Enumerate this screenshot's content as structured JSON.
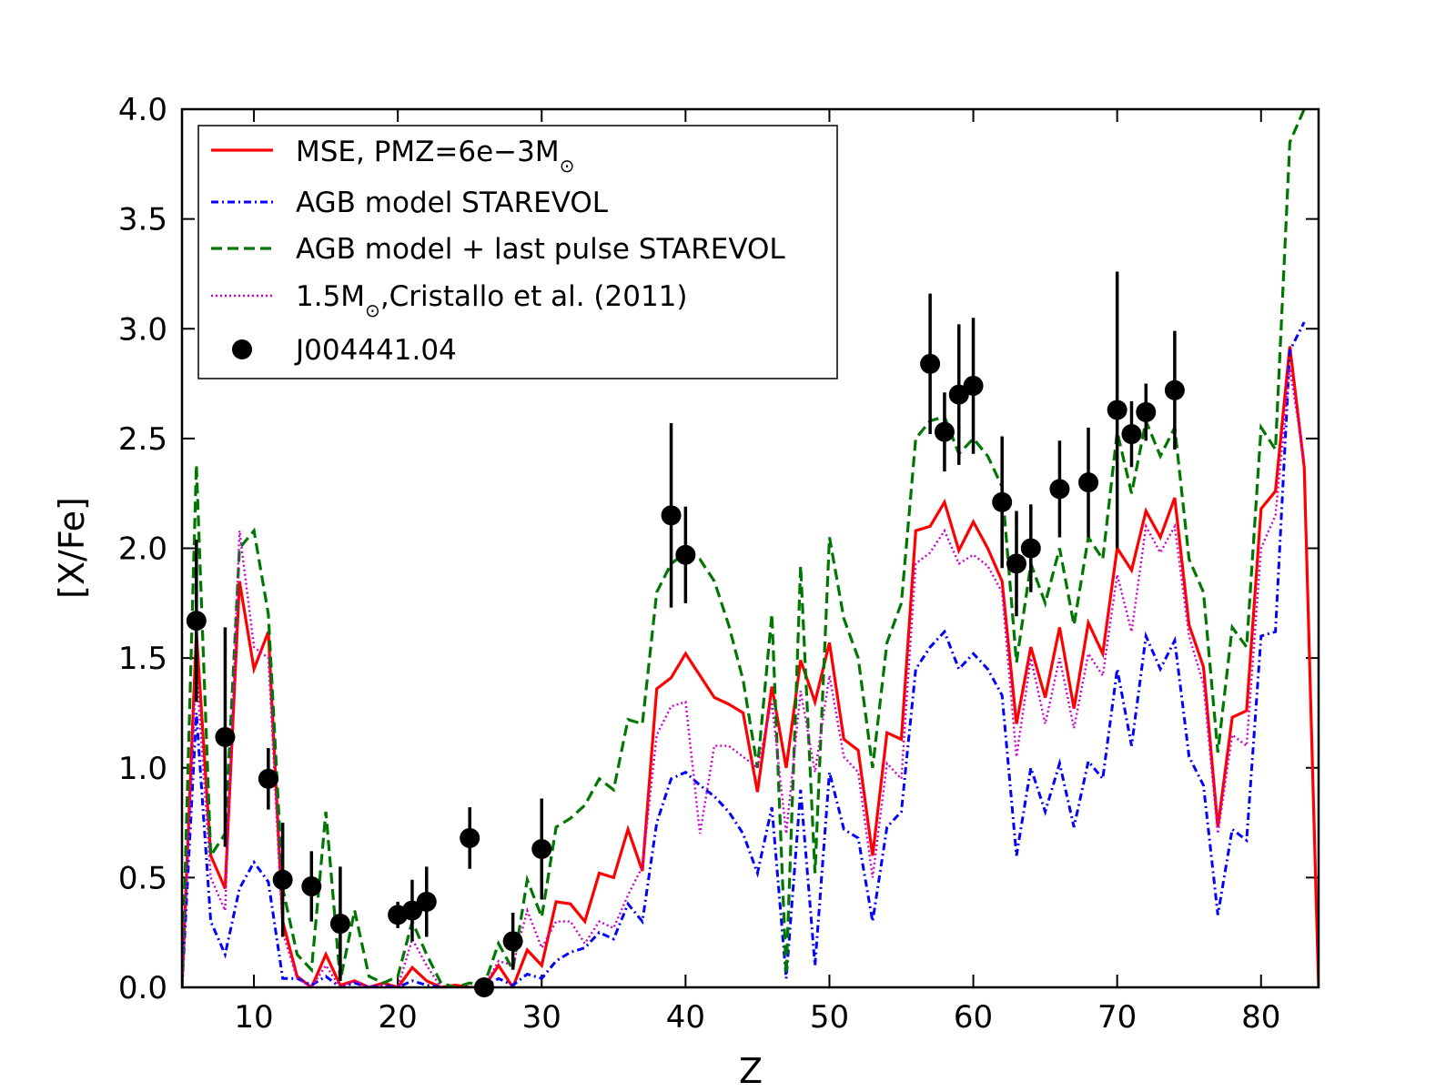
{
  "chart_data": {
    "type": "line",
    "xlabel": "Z",
    "ylabel": "[X/Fe]",
    "xlim": [
      5,
      84
    ],
    "ylim": [
      0,
      4
    ],
    "xticks": [
      10,
      20,
      30,
      40,
      50,
      60,
      70,
      80
    ],
    "yticks": [
      "0.0",
      "0.5",
      "1.0",
      "1.5",
      "2.0",
      "2.5",
      "3.0",
      "3.5",
      "4.0"
    ],
    "legend_position": "top-left",
    "series": [
      {
        "name": "MSE, PMZ=6e−3M",
        "name_sub": "⊙",
        "color": "#ff0000",
        "dash": "solid",
        "x": [
          5,
          6,
          7,
          8,
          9,
          10,
          11,
          12,
          13,
          14,
          15,
          16,
          17,
          18,
          19,
          20,
          21,
          22,
          23,
          24,
          25,
          26,
          27,
          28,
          29,
          30,
          31,
          32,
          33,
          34,
          35,
          36,
          37,
          38,
          39,
          40,
          41,
          42,
          43,
          44,
          45,
          46,
          47,
          48,
          49,
          50,
          51,
          52,
          53,
          54,
          55,
          56,
          57,
          58,
          59,
          60,
          61,
          62,
          63,
          64,
          65,
          66,
          67,
          68,
          69,
          70,
          71,
          72,
          73,
          74,
          75,
          76,
          77,
          78,
          79,
          80,
          81,
          82,
          83,
          84
        ],
        "y": [
          0.0,
          1.62,
          0.6,
          0.45,
          1.85,
          1.45,
          1.62,
          0.3,
          0.05,
          0.0,
          0.15,
          0.01,
          0.03,
          0.0,
          0.02,
          0.0,
          0.09,
          0.03,
          0.0,
          0.01,
          0.0,
          0.0,
          0.1,
          0.0,
          0.17,
          0.1,
          0.39,
          0.38,
          0.3,
          0.52,
          0.5,
          0.72,
          0.53,
          1.36,
          1.41,
          1.52,
          1.42,
          1.32,
          1.29,
          1.25,
          0.89,
          1.37,
          1.0,
          1.49,
          1.3,
          1.57,
          1.13,
          1.08,
          0.6,
          1.16,
          1.13,
          2.08,
          2.1,
          2.21,
          1.99,
          2.12,
          2.0,
          1.85,
          1.2,
          1.55,
          1.32,
          1.64,
          1.27,
          1.66,
          1.52,
          2.0,
          1.9,
          2.17,
          2.05,
          2.23,
          1.65,
          1.46,
          0.73,
          1.23,
          1.26,
          2.18,
          2.26,
          2.92,
          2.37,
          0.0
        ]
      },
      {
        "name": "AGB model STAREVOL",
        "color": "#0000ff",
        "dash": "dashdot",
        "x": [
          5,
          6,
          7,
          8,
          9,
          10,
          11,
          12,
          13,
          14,
          15,
          16,
          17,
          18,
          19,
          20,
          21,
          22,
          23,
          24,
          25,
          26,
          27,
          28,
          29,
          30,
          31,
          32,
          33,
          34,
          35,
          36,
          37,
          38,
          39,
          40,
          41,
          42,
          43,
          44,
          45,
          46,
          47,
          48,
          49,
          50,
          51,
          52,
          53,
          54,
          55,
          56,
          57,
          58,
          59,
          60,
          61,
          62,
          63,
          64,
          65,
          66,
          67,
          68,
          69,
          70,
          71,
          72,
          73,
          74,
          75,
          76,
          77,
          78,
          79,
          80,
          81,
          82,
          83
        ],
        "y": [
          0.0,
          1.25,
          0.3,
          0.15,
          0.45,
          0.57,
          0.48,
          0.04,
          0.04,
          0.01,
          0.05,
          0.0,
          0.02,
          0.0,
          0.01,
          0.0,
          0.03,
          0.01,
          0.0,
          0.0,
          0.0,
          0.0,
          0.04,
          0.01,
          0.06,
          0.04,
          0.12,
          0.16,
          0.18,
          0.25,
          0.22,
          0.38,
          0.3,
          0.75,
          0.95,
          0.98,
          0.92,
          0.87,
          0.8,
          0.7,
          0.52,
          0.82,
          0.04,
          0.9,
          0.1,
          0.98,
          0.72,
          0.68,
          0.3,
          0.73,
          0.8,
          1.45,
          1.55,
          1.62,
          1.45,
          1.52,
          1.45,
          1.33,
          0.6,
          1.0,
          0.8,
          1.02,
          0.73,
          1.03,
          0.95,
          1.45,
          1.1,
          1.6,
          1.45,
          1.58,
          1.05,
          0.92,
          0.33,
          0.72,
          0.67,
          1.6,
          1.62,
          2.9,
          3.03
        ]
      },
      {
        "name": "AGB model + last pulse STAREVOL",
        "color": "#007700",
        "dash": "dashed",
        "x": [
          5,
          6,
          7,
          8,
          9,
          10,
          11,
          12,
          13,
          14,
          15,
          16,
          17,
          18,
          19,
          20,
          21,
          22,
          23,
          24,
          25,
          26,
          27,
          28,
          29,
          30,
          31,
          32,
          33,
          34,
          35,
          36,
          37,
          38,
          39,
          40,
          41,
          42,
          43,
          44,
          45,
          46,
          47,
          48,
          49,
          50,
          51,
          52,
          53,
          54,
          55,
          56,
          57,
          58,
          59,
          60,
          61,
          62,
          63,
          64,
          65,
          66,
          67,
          68,
          69,
          70,
          71,
          72,
          73,
          74,
          75,
          76,
          77,
          78,
          79,
          80,
          81,
          82,
          83
        ],
        "y": [
          0.0,
          2.38,
          0.6,
          0.7,
          2.0,
          2.08,
          1.7,
          0.45,
          0.15,
          0.08,
          0.8,
          0.03,
          0.35,
          0.05,
          0.02,
          0.05,
          0.3,
          0.15,
          0.02,
          0.0,
          0.02,
          0.01,
          0.2,
          0.08,
          0.49,
          0.32,
          0.73,
          0.77,
          0.83,
          0.95,
          0.9,
          1.22,
          1.2,
          1.8,
          1.93,
          1.98,
          1.95,
          1.85,
          1.65,
          1.4,
          1.0,
          1.7,
          0.06,
          1.92,
          0.52,
          2.05,
          1.68,
          1.5,
          1.0,
          1.57,
          1.75,
          2.5,
          2.58,
          2.6,
          2.43,
          2.5,
          2.42,
          2.28,
          1.48,
          1.93,
          1.75,
          2.0,
          1.65,
          2.05,
          1.95,
          2.53,
          2.25,
          2.58,
          2.42,
          2.55,
          1.95,
          1.8,
          1.07,
          1.64,
          1.55,
          2.55,
          2.45,
          3.85,
          4.0
        ]
      },
      {
        "name": "1.5M",
        "name_sub": "⊙",
        "name_after": ",Cristallo et al. (2011)",
        "color": "#cc00cc",
        "dash": "dotted",
        "x": [
          5,
          6,
          7,
          8,
          9,
          10,
          11,
          12,
          13,
          14,
          15,
          16,
          17,
          18,
          19,
          20,
          21,
          22,
          23,
          24,
          25,
          26,
          27,
          28,
          29,
          30,
          31,
          32,
          33,
          34,
          35,
          36,
          37,
          38,
          39,
          40,
          41,
          42,
          43,
          44,
          45,
          46,
          47,
          48,
          49,
          50,
          51,
          52,
          53,
          54,
          55,
          56,
          57,
          58,
          59,
          60,
          61,
          62,
          63,
          64,
          65,
          66,
          67,
          68,
          69,
          70,
          71,
          72,
          73,
          74,
          75,
          76,
          77,
          78,
          79,
          80,
          81,
          82,
          83
        ],
        "y": [
          0.0,
          1.45,
          0.5,
          0.35,
          2.08,
          1.55,
          1.5,
          0.25,
          0.04,
          0.0,
          0.1,
          0.0,
          0.03,
          0.0,
          0.01,
          0.0,
          0.22,
          0.1,
          0.0,
          0.0,
          0.0,
          0.0,
          0.12,
          0.1,
          0.35,
          0.18,
          0.3,
          0.3,
          0.2,
          0.3,
          0.27,
          0.42,
          0.55,
          1.15,
          1.28,
          1.3,
          0.7,
          1.1,
          1.1,
          1.05,
          1.0,
          1.3,
          0.7,
          1.35,
          0.98,
          1.42,
          1.05,
          0.98,
          0.5,
          1.02,
          0.95,
          1.93,
          1.98,
          2.08,
          1.93,
          1.97,
          1.92,
          1.8,
          1.05,
          1.5,
          1.2,
          1.5,
          1.18,
          1.52,
          1.42,
          1.88,
          1.62,
          2.1,
          1.98,
          2.1,
          1.6,
          1.38,
          0.7,
          1.15,
          1.1,
          2.0,
          2.15,
          2.82,
          2.4
        ]
      }
    ],
    "observations": {
      "name": "J004441.04",
      "color": "#000000",
      "points": [
        {
          "x": 6,
          "y": 1.67,
          "err": 0.37
        },
        {
          "x": 8,
          "y": 1.14,
          "err": 0.5
        },
        {
          "x": 11,
          "y": 0.95,
          "err": 0.14
        },
        {
          "x": 12,
          "y": 0.49,
          "err": 0.26
        },
        {
          "x": 14,
          "y": 0.46,
          "err": 0.16
        },
        {
          "x": 16,
          "y": 0.29,
          "err": 0.26
        },
        {
          "x": 20,
          "y": 0.33,
          "err": 0.06
        },
        {
          "x": 21,
          "y": 0.35,
          "err": 0.14
        },
        {
          "x": 22,
          "y": 0.39,
          "err": 0.16
        },
        {
          "x": 25,
          "y": 0.68,
          "err": 0.14
        },
        {
          "x": 26,
          "y": 0.0,
          "err": 0.0
        },
        {
          "x": 28,
          "y": 0.21,
          "err": 0.13
        },
        {
          "x": 30,
          "y": 0.63,
          "err": 0.23
        },
        {
          "x": 39,
          "y": 2.15,
          "err": 0.42
        },
        {
          "x": 40,
          "y": 1.97,
          "err": 0.22
        },
        {
          "x": 57,
          "y": 2.84,
          "err": 0.32
        },
        {
          "x": 58,
          "y": 2.53,
          "err": 0.18
        },
        {
          "x": 59,
          "y": 2.7,
          "err": 0.32
        },
        {
          "x": 60,
          "y": 2.74,
          "err": 0.31
        },
        {
          "x": 62,
          "y": 2.21,
          "err": 0.3
        },
        {
          "x": 63,
          "y": 1.93,
          "err": 0.24
        },
        {
          "x": 64,
          "y": 2.0,
          "err": 0.2
        },
        {
          "x": 66,
          "y": 2.27,
          "err": 0.22
        },
        {
          "x": 68,
          "y": 2.3,
          "err": 0.25
        },
        {
          "x": 70,
          "y": 2.63,
          "err": 0.63
        },
        {
          "x": 71,
          "y": 2.52,
          "err": 0.15
        },
        {
          "x": 72,
          "y": 2.62,
          "err": 0.13
        },
        {
          "x": 74,
          "y": 2.72,
          "err": 0.27
        }
      ]
    }
  }
}
